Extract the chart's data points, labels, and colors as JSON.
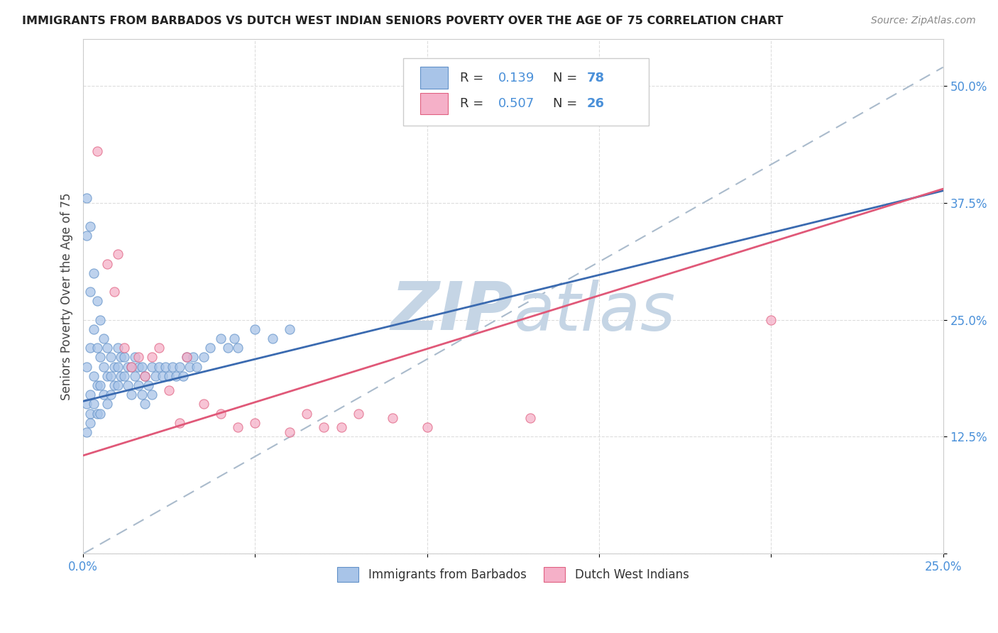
{
  "title": "IMMIGRANTS FROM BARBADOS VS DUTCH WEST INDIAN SENIORS POVERTY OVER THE AGE OF 75 CORRELATION CHART",
  "source": "Source: ZipAtlas.com",
  "ylabel": "Seniors Poverty Over the Age of 75",
  "xlim": [
    0.0,
    0.25
  ],
  "ylim": [
    0.0,
    0.55
  ],
  "xtick_vals": [
    0.0,
    0.05,
    0.1,
    0.15,
    0.2,
    0.25
  ],
  "xtick_labels": [
    "0.0%",
    "",
    "",
    "",
    "",
    "25.0%"
  ],
  "ytick_vals": [
    0.0,
    0.125,
    0.25,
    0.375,
    0.5
  ],
  "ytick_labels": [
    "",
    "12.5%",
    "25.0%",
    "37.5%",
    "50.0%"
  ],
  "barbados_color": "#a8c4e8",
  "dutch_color": "#f5b0c8",
  "barbados_edge_color": "#6090c8",
  "dutch_edge_color": "#e06080",
  "barbados_line_color": "#3a6ab0",
  "dutch_line_color": "#e05878",
  "diag_line_color": "#aabbcc",
  "watermark_color": "#c5d5e5",
  "background_color": "#ffffff",
  "grid_color": "#dddddd",
  "tick_color": "#4a90d9",
  "title_color": "#222222",
  "source_color": "#888888",
  "legend_label1": "R =  0.139   N = 78",
  "legend_label2": "R =  0.507   N = 26",
  "barbados_x": [
    0.001,
    0.001,
    0.001,
    0.001,
    0.001,
    0.002,
    0.002,
    0.002,
    0.002,
    0.002,
    0.002,
    0.003,
    0.003,
    0.003,
    0.003,
    0.004,
    0.004,
    0.004,
    0.004,
    0.005,
    0.005,
    0.005,
    0.005,
    0.006,
    0.006,
    0.006,
    0.007,
    0.007,
    0.007,
    0.008,
    0.008,
    0.008,
    0.009,
    0.009,
    0.01,
    0.01,
    0.01,
    0.011,
    0.011,
    0.012,
    0.012,
    0.013,
    0.013,
    0.014,
    0.014,
    0.015,
    0.015,
    0.016,
    0.016,
    0.017,
    0.017,
    0.018,
    0.018,
    0.019,
    0.02,
    0.02,
    0.021,
    0.022,
    0.023,
    0.024,
    0.025,
    0.026,
    0.027,
    0.028,
    0.029,
    0.03,
    0.031,
    0.032,
    0.033,
    0.035,
    0.037,
    0.04,
    0.042,
    0.044,
    0.045,
    0.05,
    0.055,
    0.06
  ],
  "barbados_y": [
    0.38,
    0.34,
    0.2,
    0.16,
    0.13,
    0.35,
    0.28,
    0.22,
    0.17,
    0.15,
    0.14,
    0.3,
    0.24,
    0.19,
    0.16,
    0.27,
    0.22,
    0.18,
    0.15,
    0.25,
    0.21,
    0.18,
    0.15,
    0.23,
    0.2,
    0.17,
    0.22,
    0.19,
    0.16,
    0.21,
    0.19,
    0.17,
    0.2,
    0.18,
    0.22,
    0.2,
    0.18,
    0.21,
    0.19,
    0.21,
    0.19,
    0.2,
    0.18,
    0.2,
    0.17,
    0.21,
    0.19,
    0.2,
    0.18,
    0.2,
    0.17,
    0.19,
    0.16,
    0.18,
    0.2,
    0.17,
    0.19,
    0.2,
    0.19,
    0.2,
    0.19,
    0.2,
    0.19,
    0.2,
    0.19,
    0.21,
    0.2,
    0.21,
    0.2,
    0.21,
    0.22,
    0.23,
    0.22,
    0.23,
    0.22,
    0.24,
    0.23,
    0.24
  ],
  "dutch_x": [
    0.004,
    0.007,
    0.009,
    0.01,
    0.012,
    0.014,
    0.016,
    0.018,
    0.02,
    0.022,
    0.025,
    0.028,
    0.03,
    0.035,
    0.04,
    0.045,
    0.05,
    0.06,
    0.065,
    0.07,
    0.075,
    0.08,
    0.09,
    0.1,
    0.13,
    0.2
  ],
  "dutch_y": [
    0.43,
    0.31,
    0.28,
    0.32,
    0.22,
    0.2,
    0.21,
    0.19,
    0.21,
    0.22,
    0.175,
    0.14,
    0.21,
    0.16,
    0.15,
    0.135,
    0.14,
    0.13,
    0.15,
    0.135,
    0.135,
    0.15,
    0.145,
    0.135,
    0.145,
    0.25
  ],
  "barb_reg": [
    0.165,
    0.0,
    0.06,
    0.165
  ],
  "dutch_reg": [
    0.125,
    0.0,
    0.38,
    0.25
  ],
  "diag_line": [
    0.0,
    0.0,
    0.25,
    0.52
  ]
}
